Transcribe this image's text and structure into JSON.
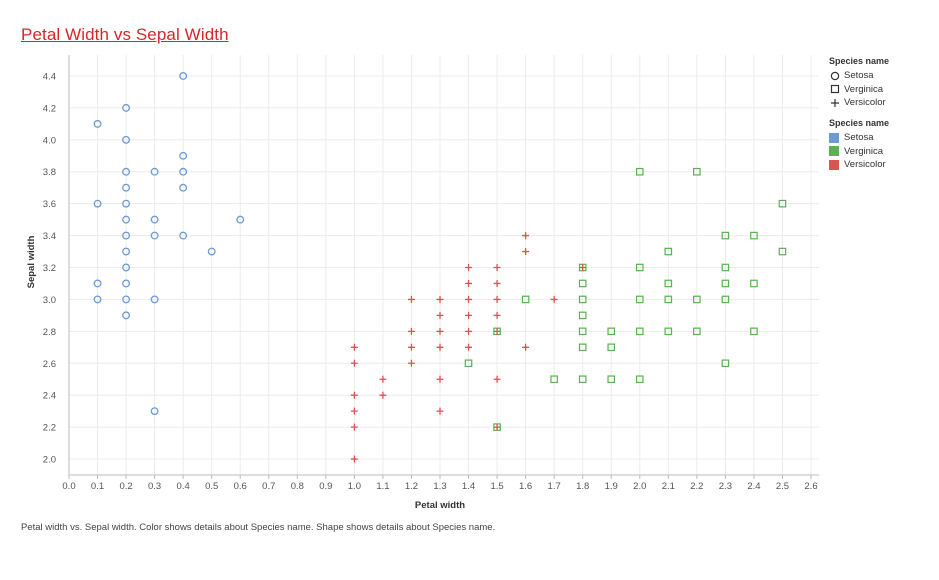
{
  "title": "Petal Width vs Sepal Width",
  "caption": "Petal width vs. Sepal width.  Color shows details about Species name.  Shape shows details about Species name.",
  "legend_shape": {
    "title": "Species name",
    "items": [
      {
        "label": "Setosa",
        "shape": "circle"
      },
      {
        "label": "Verginica",
        "shape": "square"
      },
      {
        "label": "Versicolor",
        "shape": "plus"
      }
    ]
  },
  "legend_color": {
    "title": "Species name",
    "items": [
      {
        "label": "Setosa",
        "color": "#6b9bd1"
      },
      {
        "label": "Verginica",
        "color": "#59b14f"
      },
      {
        "label": "Versicolor",
        "color": "#d9534f"
      }
    ]
  },
  "chart_data": {
    "type": "scatter",
    "xlabel": "Petal width",
    "ylabel": "Sepal width",
    "xlim": [
      0.0,
      2.6
    ],
    "ylim": [
      1.9,
      4.5
    ],
    "xticks": [
      "0.0",
      "0.1",
      "0.2",
      "0.3",
      "0.4",
      "0.5",
      "0.6",
      "0.7",
      "0.8",
      "0.9",
      "1.0",
      "1.1",
      "1.2",
      "1.3",
      "1.4",
      "1.5",
      "1.6",
      "1.7",
      "1.8",
      "1.9",
      "2.0",
      "2.1",
      "2.2",
      "2.3",
      "2.4",
      "2.5",
      "2.6"
    ],
    "yticks": [
      "2.0",
      "2.2",
      "2.4",
      "2.6",
      "2.8",
      "3.0",
      "3.2",
      "3.4",
      "3.6",
      "3.8",
      "4.0",
      "4.2",
      "4.4"
    ],
    "grid": true,
    "series": [
      {
        "name": "Setosa",
        "color": "#6b9bd1",
        "shape": "circle",
        "points": [
          [
            0.1,
            3.0
          ],
          [
            0.1,
            3.1
          ],
          [
            0.1,
            3.6
          ],
          [
            0.1,
            4.1
          ],
          [
            0.2,
            2.9
          ],
          [
            0.2,
            3.0
          ],
          [
            0.2,
            3.1
          ],
          [
            0.2,
            3.2
          ],
          [
            0.2,
            3.3
          ],
          [
            0.2,
            3.4
          ],
          [
            0.2,
            3.5
          ],
          [
            0.2,
            3.6
          ],
          [
            0.2,
            3.7
          ],
          [
            0.2,
            3.8
          ],
          [
            0.2,
            4.0
          ],
          [
            0.2,
            4.2
          ],
          [
            0.3,
            2.3
          ],
          [
            0.3,
            3.0
          ],
          [
            0.3,
            3.4
          ],
          [
            0.3,
            3.5
          ],
          [
            0.3,
            3.8
          ],
          [
            0.4,
            3.4
          ],
          [
            0.4,
            3.7
          ],
          [
            0.4,
            3.8
          ],
          [
            0.4,
            3.9
          ],
          [
            0.4,
            4.4
          ],
          [
            0.5,
            3.3
          ],
          [
            0.6,
            3.5
          ]
        ]
      },
      {
        "name": "Verginica",
        "color": "#59b14f",
        "shape": "square",
        "points": [
          [
            1.4,
            2.6
          ],
          [
            1.5,
            2.2
          ],
          [
            1.5,
            2.8
          ],
          [
            1.6,
            3.0
          ],
          [
            1.7,
            2.5
          ],
          [
            1.8,
            2.5
          ],
          [
            1.8,
            2.7
          ],
          [
            1.8,
            2.8
          ],
          [
            1.8,
            2.9
          ],
          [
            1.8,
            3.0
          ],
          [
            1.8,
            3.1
          ],
          [
            1.8,
            3.2
          ],
          [
            1.9,
            2.5
          ],
          [
            1.9,
            2.7
          ],
          [
            1.9,
            2.8
          ],
          [
            2.0,
            2.5
          ],
          [
            2.0,
            2.8
          ],
          [
            2.0,
            3.0
          ],
          [
            2.0,
            3.2
          ],
          [
            2.0,
            3.8
          ],
          [
            2.1,
            2.8
          ],
          [
            2.1,
            3.0
          ],
          [
            2.1,
            3.1
          ],
          [
            2.1,
            3.3
          ],
          [
            2.2,
            2.8
          ],
          [
            2.2,
            3.0
          ],
          [
            2.2,
            3.8
          ],
          [
            2.3,
            2.6
          ],
          [
            2.3,
            3.0
          ],
          [
            2.3,
            3.1
          ],
          [
            2.3,
            3.2
          ],
          [
            2.3,
            3.4
          ],
          [
            2.4,
            2.8
          ],
          [
            2.4,
            3.1
          ],
          [
            2.4,
            3.4
          ],
          [
            2.5,
            3.3
          ],
          [
            2.5,
            3.6
          ]
        ]
      },
      {
        "name": "Versicolor",
        "color": "#d9534f",
        "shape": "plus",
        "points": [
          [
            1.0,
            2.0
          ],
          [
            1.0,
            2.2
          ],
          [
            1.0,
            2.3
          ],
          [
            1.0,
            2.4
          ],
          [
            1.0,
            2.6
          ],
          [
            1.0,
            2.7
          ],
          [
            1.1,
            2.4
          ],
          [
            1.1,
            2.5
          ],
          [
            1.2,
            2.6
          ],
          [
            1.2,
            2.7
          ],
          [
            1.2,
            2.8
          ],
          [
            1.2,
            3.0
          ],
          [
            1.3,
            2.3
          ],
          [
            1.3,
            2.5
          ],
          [
            1.3,
            2.7
          ],
          [
            1.3,
            2.8
          ],
          [
            1.3,
            2.9
          ],
          [
            1.3,
            3.0
          ],
          [
            1.4,
            2.7
          ],
          [
            1.4,
            2.8
          ],
          [
            1.4,
            2.9
          ],
          [
            1.4,
            3.0
          ],
          [
            1.4,
            3.1
          ],
          [
            1.4,
            3.2
          ],
          [
            1.5,
            2.2
          ],
          [
            1.5,
            2.5
          ],
          [
            1.5,
            2.8
          ],
          [
            1.5,
            2.9
          ],
          [
            1.5,
            3.0
          ],
          [
            1.5,
            3.1
          ],
          [
            1.5,
            3.2
          ],
          [
            1.6,
            2.7
          ],
          [
            1.6,
            3.3
          ],
          [
            1.6,
            3.4
          ],
          [
            1.7,
            3.0
          ],
          [
            1.8,
            3.2
          ]
        ]
      }
    ]
  }
}
